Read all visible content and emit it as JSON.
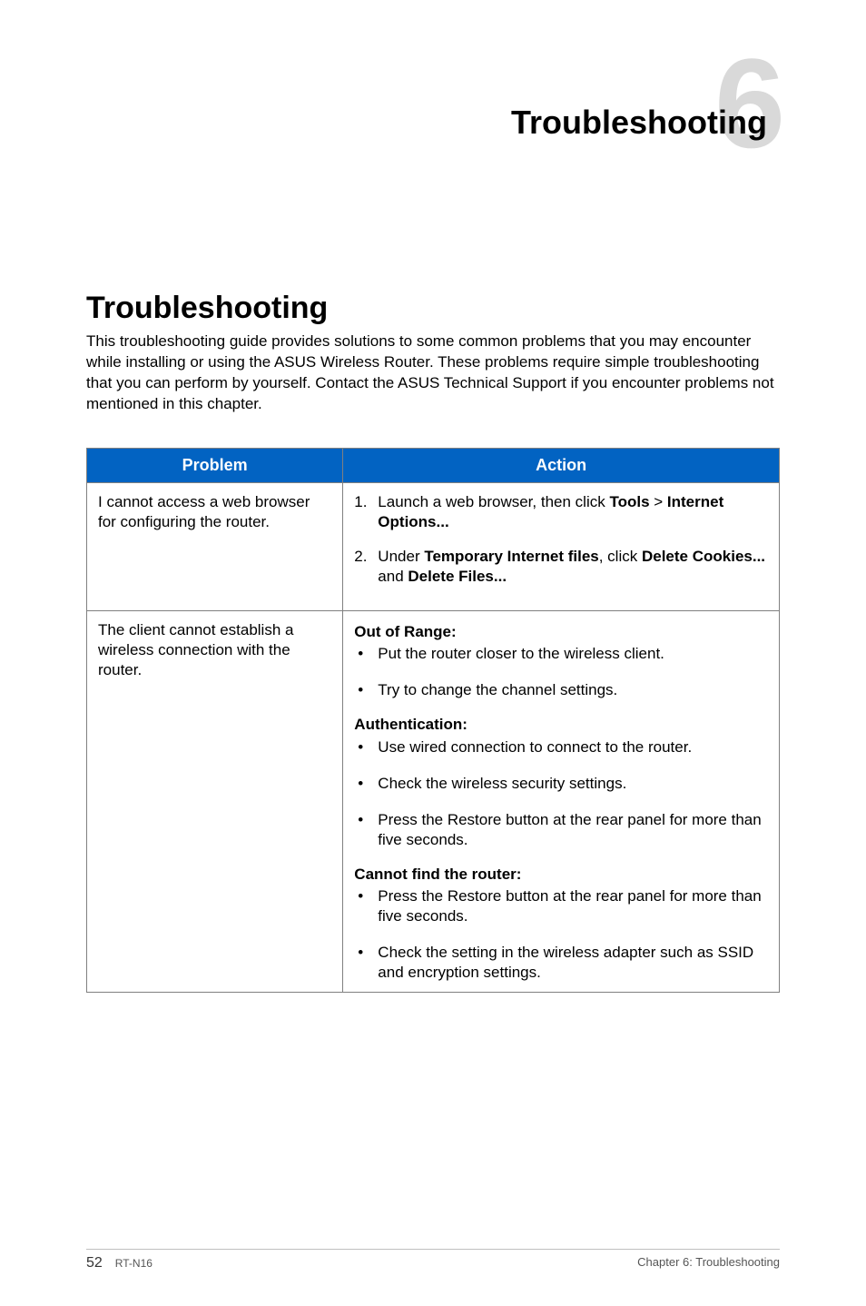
{
  "chapter": {
    "big_number": "6",
    "title": "Troubleshooting"
  },
  "section": {
    "heading": "Troubleshooting",
    "intro": "This troubleshooting guide provides solutions to some common problems that you may encounter while installing or using the ASUS Wireless Router. These problems require simple troubleshooting that you can perform by yourself. Contact the ASUS Technical Support if you encounter problems not mentioned in this chapter."
  },
  "table": {
    "headers": {
      "problem": "Problem",
      "action": "Action"
    },
    "row1": {
      "problem": "I cannot access a web browser for configuring the router.",
      "step1_pre": "Launch a web browser, then click ",
      "step1_b1": "Tools",
      "step1_gt": " > ",
      "step1_b2": "Internet Options...",
      "step2_pre": "Under ",
      "step2_b1": "Temporary Internet files",
      "step2_mid": ", click ",
      "step2_b2": "Delete Cookies...",
      "step2_and": " and ",
      "step2_b3": "Delete Files..."
    },
    "row2": {
      "problem": "The client cannot establish a wireless connection with the router.",
      "g1_head": "Out of Range:",
      "g1_i1": "Put the router closer to the wireless client.",
      "g1_i2": "Try to change the channel settings.",
      "g2_head": "Authentication:",
      "g2_i1": "Use wired connection to connect to the router.",
      "g2_i2": "Check the wireless security settings.",
      "g2_i3": "Press the Restore button at the rear panel for more than five seconds.",
      "g3_head": "Cannot find the router:",
      "g3_i1": "Press the Restore button at the rear panel for more than five seconds.",
      "g3_i2": "Check the setting in the wireless adapter such as SSID and encryption settings."
    }
  },
  "footer": {
    "page": "52",
    "model": "RT-N16",
    "chapter_ref": "Chapter 6: Troubleshooting"
  },
  "styling": {
    "header_bg": "#0263c2",
    "header_fg": "#ffffff",
    "border_color": "#808080",
    "bignum_color": "#d9d9d9",
    "text_color": "#000000",
    "title_fontsize": 36,
    "section_fontsize": 34,
    "body_fontsize": 17,
    "footer_fontsize": 13,
    "page_bg": "#ffffff"
  }
}
